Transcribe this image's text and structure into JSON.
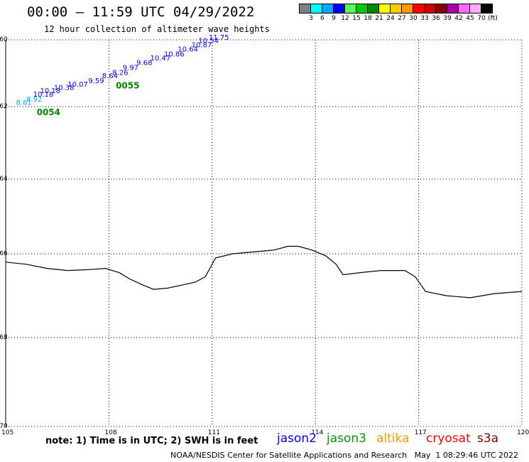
{
  "header": {
    "title": "00:00 – 11:59 UTC 04/29/2022",
    "subtitle": "12 hour collection of altimeter wave heights"
  },
  "color_scale": {
    "unit": "(ft)",
    "colors": [
      "#808080",
      "#00ffff",
      "#00aaff",
      "#0000ff",
      "#55ff55",
      "#00cc00",
      "#008800",
      "#ffff00",
      "#ffcc00",
      "#ff9900",
      "#ff0000",
      "#cc0000",
      "#880000",
      "#aa00aa",
      "#ff66ff",
      "#ffaaff",
      "#000000"
    ],
    "labels": [
      "3",
      "6",
      "9",
      "12",
      "15",
      "18",
      "21",
      "24",
      "27",
      "30",
      "33",
      "36",
      "39",
      "42",
      "45",
      "70"
    ]
  },
  "map": {
    "lon_ticks": [
      "105",
      "108",
      "111",
      "114",
      "117",
      "120"
    ],
    "lat_ticks": [
      "-60",
      "-62",
      "-64",
      "-66",
      "-68",
      "-70"
    ],
    "coastline": [
      [
        105.0,
        -66.2
      ],
      [
        105.6,
        -66.25
      ],
      [
        106.2,
        -66.35
      ],
      [
        106.8,
        -66.4
      ],
      [
        107.4,
        -66.38
      ],
      [
        107.9,
        -66.35
      ],
      [
        108.3,
        -66.45
      ],
      [
        108.6,
        -66.6
      ],
      [
        109.0,
        -66.75
      ],
      [
        109.3,
        -66.85
      ],
      [
        109.7,
        -66.82
      ],
      [
        110.1,
        -66.75
      ],
      [
        110.5,
        -66.68
      ],
      [
        110.8,
        -66.55
      ],
      [
        110.9,
        -66.4
      ],
      [
        111.1,
        -66.1
      ],
      [
        111.6,
        -66.0
      ],
      [
        112.2,
        -65.95
      ],
      [
        112.8,
        -65.9
      ],
      [
        113.2,
        -65.8
      ],
      [
        113.5,
        -65.8
      ],
      [
        113.9,
        -65.9
      ],
      [
        114.3,
        -66.05
      ],
      [
        114.6,
        -66.25
      ],
      [
        114.8,
        -66.5
      ],
      [
        115.3,
        -66.45
      ],
      [
        115.9,
        -66.4
      ],
      [
        116.6,
        -66.4
      ],
      [
        116.9,
        -66.55
      ],
      [
        117.2,
        -66.9
      ],
      [
        117.8,
        -67.0
      ],
      [
        118.5,
        -67.05
      ],
      [
        119.2,
        -66.95
      ],
      [
        120.0,
        -66.9
      ]
    ]
  },
  "tracks": [
    {
      "name": "0054",
      "labels": [
        {
          "text": "8.61",
          "color": "#00aaff",
          "lon": 105.3,
          "lat": -61.95
        },
        {
          "text": "8.92",
          "color": "#00aaff",
          "lon": 105.6,
          "lat": -61.85
        },
        {
          "text": "10.18",
          "color": "#0000ff",
          "lon": 105.8,
          "lat": -61.7
        },
        {
          "text": "10.18",
          "color": "#0000ff",
          "lon": 106.0,
          "lat": -61.6
        },
        {
          "text": "10.38",
          "color": "#0000ff",
          "lon": 106.4,
          "lat": -61.5
        },
        {
          "text": "10.07",
          "color": "#0000ff",
          "lon": 106.8,
          "lat": -61.4
        },
        {
          "text": "9.59",
          "color": "#0000ff",
          "lon": 107.4,
          "lat": -61.3
        },
        {
          "text": "8.64",
          "color": "#0000ff",
          "lon": 107.8,
          "lat": -61.15
        }
      ],
      "id_lon": 105.9,
      "id_lat": -62.0
    },
    {
      "name": "0055",
      "labels": [
        {
          "text": "8.26",
          "color": "#0000ff",
          "lon": 108.1,
          "lat": -61.05
        },
        {
          "text": "9.97",
          "color": "#0000ff",
          "lon": 108.4,
          "lat": -60.9
        },
        {
          "text": "9.68",
          "color": "#0000ff",
          "lon": 108.8,
          "lat": -60.75
        },
        {
          "text": "10.47",
          "color": "#0000ff",
          "lon": 109.2,
          "lat": -60.62
        },
        {
          "text": "10.86",
          "color": "#0000ff",
          "lon": 109.6,
          "lat": -60.5
        },
        {
          "text": "10.64",
          "color": "#0000ff",
          "lon": 110.0,
          "lat": -60.35
        },
        {
          "text": "10.87",
          "color": "#0000ff",
          "lon": 110.4,
          "lat": -60.22
        },
        {
          "text": "10.54",
          "color": "#0000ff",
          "lon": 110.6,
          "lat": -60.1
        },
        {
          "text": "11.75",
          "color": "#0000ff",
          "lon": 110.9,
          "lat": -59.98
        }
      ],
      "id_lon": 108.2,
      "id_lat": -61.2
    }
  ],
  "footer": {
    "note": "note: 1) Time is in UTC; 2) SWH is in feet",
    "satellites": [
      {
        "name": "jason2",
        "color": "#0000ff"
      },
      {
        "name": "jason3",
        "color": "#009900"
      },
      {
        "name": "altika",
        "color": "#ff9900"
      },
      {
        "name": "cryosat",
        "color": "#ff0000"
      },
      {
        "name": "s3a",
        "color": "#880000"
      }
    ],
    "credit": "NOAA/NESDIS Center for Satellite Applications and Research   May  1 08:29:46 UTC 2022"
  }
}
